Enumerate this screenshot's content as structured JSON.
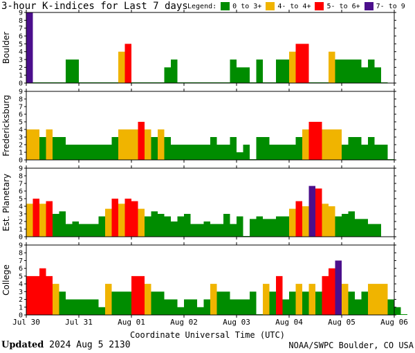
{
  "header": {
    "title": "3-hour K-indices for Last 7 days",
    "legend_title": "Legend:",
    "legend": [
      {
        "label": "0 to 3+",
        "color": "#008c00"
      },
      {
        "label": "4- to 4+",
        "color": "#f0b400"
      },
      {
        "label": "5- to 6+",
        "color": "#ff0000"
      },
      {
        "label": "7- to 9",
        "color": "#4b0f8c"
      }
    ]
  },
  "footer": {
    "updated_label": "Updated",
    "updated_value": "2024 Aug  5 2130",
    "source": "NOAA/SWPC Boulder, CO USA"
  },
  "chart_data": {
    "type": "bar",
    "xlabel": "Coordinate Universal Time (UTC)",
    "x_ticks": [
      "Jul 30",
      "Jul 31",
      "Aug 01",
      "Aug 02",
      "Aug 03",
      "Aug 04",
      "Aug 05",
      "Aug 06"
    ],
    "ylim": [
      0,
      9
    ],
    "y_ticks": [
      0,
      1,
      2,
      3,
      4,
      5,
      6,
      7,
      8,
      9
    ],
    "slots_per_day": 8,
    "color_scale": [
      {
        "max": 3.6,
        "color": "#008c00"
      },
      {
        "max": 4.6,
        "color": "#f0b400"
      },
      {
        "max": 6.6,
        "color": "#ff0000"
      },
      {
        "max": 9,
        "color": "#4b0f8c"
      }
    ],
    "panels": [
      {
        "name": "Boulder",
        "values": [
          9,
          0,
          0,
          0,
          0,
          0,
          3,
          3,
          0,
          0,
          0,
          0,
          0,
          0,
          4,
          5,
          0,
          0,
          0,
          0,
          0,
          2,
          3,
          0,
          0,
          0,
          0,
          0,
          0,
          0,
          0,
          3,
          2,
          2,
          0,
          3,
          0,
          0,
          3,
          3,
          4,
          5,
          5,
          0,
          0,
          0,
          4,
          3,
          3,
          3,
          3,
          2,
          3,
          2,
          0
        ]
      },
      {
        "name": "Fredericksburg",
        "values": [
          4,
          4,
          3,
          4,
          3,
          3,
          2,
          2,
          2,
          2,
          2,
          2,
          2,
          3,
          4,
          4,
          4,
          5,
          4,
          3,
          4,
          3,
          2,
          2,
          2,
          2,
          2,
          2,
          3,
          2,
          2,
          3,
          1,
          2,
          0,
          3,
          3,
          2,
          2,
          2,
          2,
          3,
          4,
          5,
          5,
          4,
          4,
          4,
          2,
          3,
          3,
          2,
          3,
          2,
          2,
          0
        ]
      },
      {
        "name": "Est. Planetary",
        "values": [
          4.33,
          5,
          4.33,
          4.67,
          3,
          3.33,
          1.67,
          2,
          1.67,
          1.67,
          1.67,
          2.67,
          3.67,
          5,
          4.33,
          5,
          4.67,
          3.67,
          2.67,
          3.33,
          3,
          2.67,
          2,
          2.67,
          3,
          1.67,
          1.67,
          2,
          1.67,
          1.67,
          3,
          1.67,
          2.67,
          0,
          2.33,
          2.67,
          2.33,
          2.33,
          2.67,
          2.67,
          3.67,
          4.67,
          4,
          6.67,
          6.33,
          4.33,
          4,
          2.67,
          3,
          3.33,
          2.33,
          2.33,
          1.67,
          1.67
        ]
      },
      {
        "name": "College",
        "values": [
          5,
          5,
          6,
          5,
          4,
          3,
          2,
          2,
          2,
          2,
          2,
          1,
          4,
          3,
          3,
          3,
          5,
          5,
          4,
          3,
          3,
          2,
          2,
          1,
          2,
          2,
          1,
          2,
          4,
          3,
          3,
          2,
          2,
          2,
          3,
          0,
          4,
          3,
          5,
          2,
          3,
          4,
          3,
          4,
          3,
          5,
          6,
          7,
          4,
          3,
          2,
          3,
          4,
          4,
          4,
          2,
          1,
          0
        ]
      }
    ]
  }
}
